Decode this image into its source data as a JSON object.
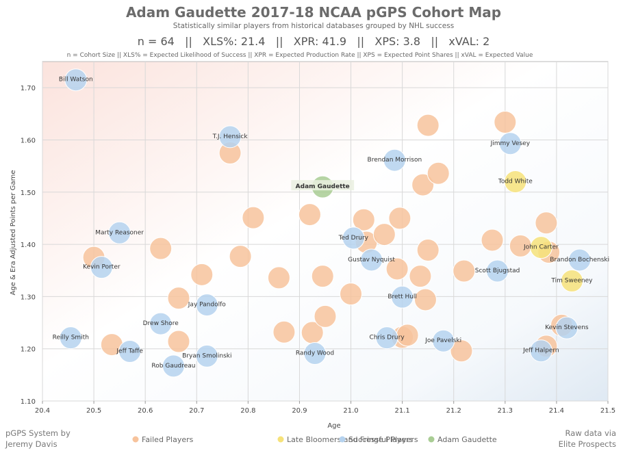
{
  "header": {
    "title": "Adam Gaudette 2017-18 NCAA pGPS Cohort Map",
    "subtitle": "Statistically similar players from historical databases grouped by NHL success",
    "stats_line": "n = 64   ||   XLS%: 21.4   ||   XPR: 41.9   ||   XPS: 3.8   ||   xVAL: 2",
    "definitions": "n = Cohort Size || XLS% = Expected Likelihood of Success || XPR = Expected Production Rate || XPS = Expected Point Shares || xVAL = Expected Value"
  },
  "footer": {
    "left_line1": "pGPS System by",
    "left_line2": "Jeremy Davis",
    "right_line1": "Raw data via",
    "right_line2": "Elite Prospects"
  },
  "colors": {
    "failed": "#f7c39c",
    "fringe": "#f6e27a",
    "success": "#b5d2ee",
    "subject": "#a9cd94",
    "title": "#6b6b6b"
  },
  "chart_data": {
    "type": "scatter",
    "xlabel": "Age",
    "ylabel": "Age & Era Adjusted Points per Game",
    "xlim": [
      20.4,
      21.5
    ],
    "ylim": [
      1.1,
      1.75
    ],
    "xticks": [
      "20.4",
      "20.5",
      "20.6",
      "20.7",
      "20.8",
      "20.9",
      "21.0",
      "21.1",
      "21.2",
      "21.3",
      "21.4",
      "21.5"
    ],
    "yticks": [
      "1.10",
      "1.20",
      "1.30",
      "1.40",
      "1.50",
      "1.60",
      "1.70"
    ],
    "grid": true,
    "legend_position": "bottom",
    "legend": [
      {
        "key": "failed",
        "label": "Failed Players"
      },
      {
        "key": "fringe",
        "label": "Late Bloomers and Fringe Players"
      },
      {
        "key": "success",
        "label": "Successful Players"
      },
      {
        "key": "subject",
        "label": "Adam Gaudette"
      }
    ],
    "series": [
      {
        "name": "Failed Players",
        "key": "failed",
        "points": [
          {
            "x": 20.5,
            "y": 1.375
          },
          {
            "x": 20.535,
            "y": 1.208
          },
          {
            "x": 20.63,
            "y": 1.392
          },
          {
            "x": 20.665,
            "y": 1.297
          },
          {
            "x": 20.665,
            "y": 1.214
          },
          {
            "x": 20.71,
            "y": 1.342
          },
          {
            "x": 20.765,
            "y": 1.575
          },
          {
            "x": 20.785,
            "y": 1.377
          },
          {
            "x": 20.81,
            "y": 1.451
          },
          {
            "x": 20.86,
            "y": 1.336
          },
          {
            "x": 20.87,
            "y": 1.232
          },
          {
            "x": 20.92,
            "y": 1.457
          },
          {
            "x": 20.925,
            "y": 1.231
          },
          {
            "x": 20.945,
            "y": 1.339
          },
          {
            "x": 20.95,
            "y": 1.262
          },
          {
            "x": 21.0,
            "y": 1.305
          },
          {
            "x": 21.025,
            "y": 1.447
          },
          {
            "x": 21.03,
            "y": 1.404
          },
          {
            "x": 21.065,
            "y": 1.419
          },
          {
            "x": 21.09,
            "y": 1.353
          },
          {
            "x": 21.095,
            "y": 1.45
          },
          {
            "x": 21.1,
            "y": 1.222
          },
          {
            "x": 21.11,
            "y": 1.226
          },
          {
            "x": 21.135,
            "y": 1.339
          },
          {
            "x": 21.14,
            "y": 1.514
          },
          {
            "x": 21.145,
            "y": 1.294
          },
          {
            "x": 21.15,
            "y": 1.389
          },
          {
            "x": 21.15,
            "y": 1.628
          },
          {
            "x": 21.17,
            "y": 1.536
          },
          {
            "x": 21.215,
            "y": 1.196
          },
          {
            "x": 21.22,
            "y": 1.349
          },
          {
            "x": 21.275,
            "y": 1.408
          },
          {
            "x": 21.3,
            "y": 1.634
          },
          {
            "x": 21.33,
            "y": 1.397
          },
          {
            "x": 21.38,
            "y": 1.441
          },
          {
            "x": 21.38,
            "y": 1.205
          },
          {
            "x": 21.385,
            "y": 1.385
          },
          {
            "x": 21.41,
            "y": 1.245
          }
        ]
      },
      {
        "name": "Late Bloomers and Fringe Players",
        "key": "fringe",
        "points": [
          {
            "x": 21.32,
            "y": 1.52,
            "label": "Todd White"
          },
          {
            "x": 21.37,
            "y": 1.394,
            "label": "John Carter"
          },
          {
            "x": 21.43,
            "y": 1.33,
            "label": "Tim Sweeney"
          }
        ]
      },
      {
        "name": "Successful Players",
        "key": "success",
        "points": [
          {
            "x": 20.465,
            "y": 1.715,
            "label": "Bill Watson"
          },
          {
            "x": 20.455,
            "y": 1.221,
            "label": "Reilly Smith"
          },
          {
            "x": 20.515,
            "y": 1.356,
            "label": "Kevin Porter"
          },
          {
            "x": 20.55,
            "y": 1.422,
            "label": "Marty Reasoner"
          },
          {
            "x": 20.57,
            "y": 1.195,
            "label": "Jeff Taffe"
          },
          {
            "x": 20.63,
            "y": 1.248,
            "label": "Drew Shore"
          },
          {
            "x": 20.655,
            "y": 1.167,
            "label": "Rob Gaudreau"
          },
          {
            "x": 20.72,
            "y": 1.284,
            "label": "Jay Pandolfo"
          },
          {
            "x": 20.72,
            "y": 1.186,
            "label": "Bryan Smolinski"
          },
          {
            "x": 20.765,
            "y": 1.606,
            "label": "T.J. Hensick"
          },
          {
            "x": 20.93,
            "y": 1.191,
            "label": "Randy Wood"
          },
          {
            "x": 21.005,
            "y": 1.412,
            "label": "Ted Drury"
          },
          {
            "x": 21.04,
            "y": 1.37,
            "label": "Gustav Nyquist"
          },
          {
            "x": 21.07,
            "y": 1.221,
            "label": "Chris Drury"
          },
          {
            "x": 21.085,
            "y": 1.561,
            "label": "Brendan Morrison"
          },
          {
            "x": 21.1,
            "y": 1.299,
            "label": "Brett Hull"
          },
          {
            "x": 21.18,
            "y": 1.215,
            "label": "Joe Pavelski"
          },
          {
            "x": 21.285,
            "y": 1.349,
            "label": "Scott Bjugstad"
          },
          {
            "x": 21.31,
            "y": 1.593,
            "label": "Jimmy Vesey"
          },
          {
            "x": 21.37,
            "y": 1.196,
            "label": "Jeff Halpern"
          },
          {
            "x": 21.42,
            "y": 1.24,
            "label": "Kevin Stevens"
          },
          {
            "x": 21.445,
            "y": 1.37,
            "label": "Brandon Bochenski"
          }
        ]
      },
      {
        "name": "Adam Gaudette",
        "key": "subject",
        "points": [
          {
            "x": 20.945,
            "y": 1.51,
            "label": "Adam Gaudette"
          }
        ]
      }
    ]
  }
}
